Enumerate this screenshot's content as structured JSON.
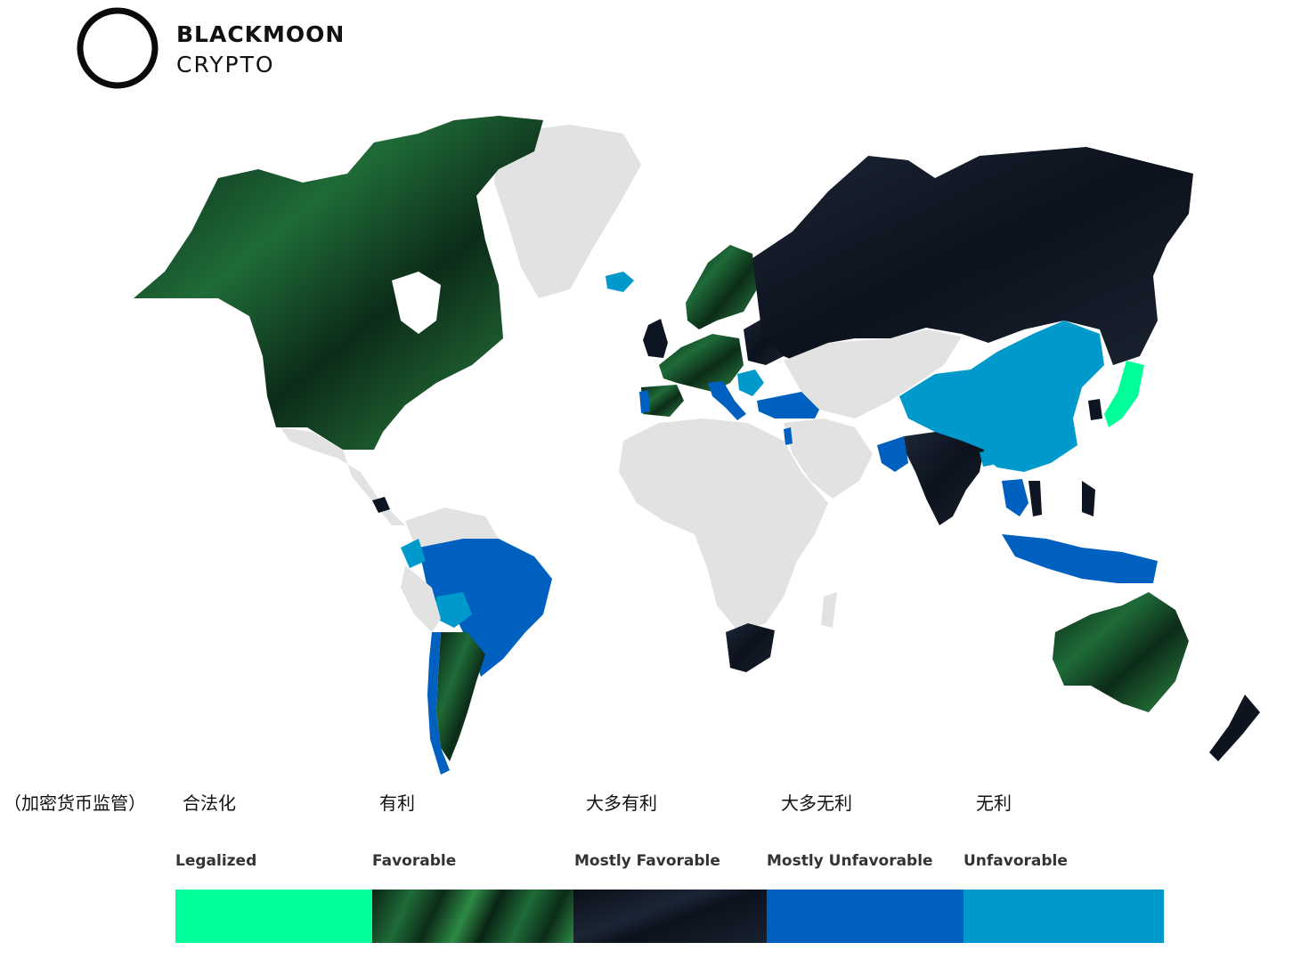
{
  "logo": {
    "line1": "BLACKMOON",
    "line2": "CRYPTO"
  },
  "caption_cn": "（加密货币监管）",
  "legend": [
    {
      "cn": "合法化",
      "en": "Legalized",
      "color": "#00ff99"
    },
    {
      "cn": "有利",
      "en": "Favorable",
      "color": "#0d3a1c"
    },
    {
      "cn": "大多有利",
      "en": "Mostly Favorable",
      "color": "#0e1522"
    },
    {
      "cn": "大多无利",
      "en": "Mostly Unfavorable",
      "color": "#0060c0"
    },
    {
      "cn": "无利",
      "en": "Unfavorable",
      "color": "#0099cc"
    }
  ],
  "colors": {
    "no_data": "#e2e2e2",
    "legalized": "#00ff99",
    "favorable": "#0d3a1c",
    "mostly_favorable": "#0e1522",
    "mostly_unfavorable": "#0060c0",
    "unfavorable": "#0099cc"
  }
}
